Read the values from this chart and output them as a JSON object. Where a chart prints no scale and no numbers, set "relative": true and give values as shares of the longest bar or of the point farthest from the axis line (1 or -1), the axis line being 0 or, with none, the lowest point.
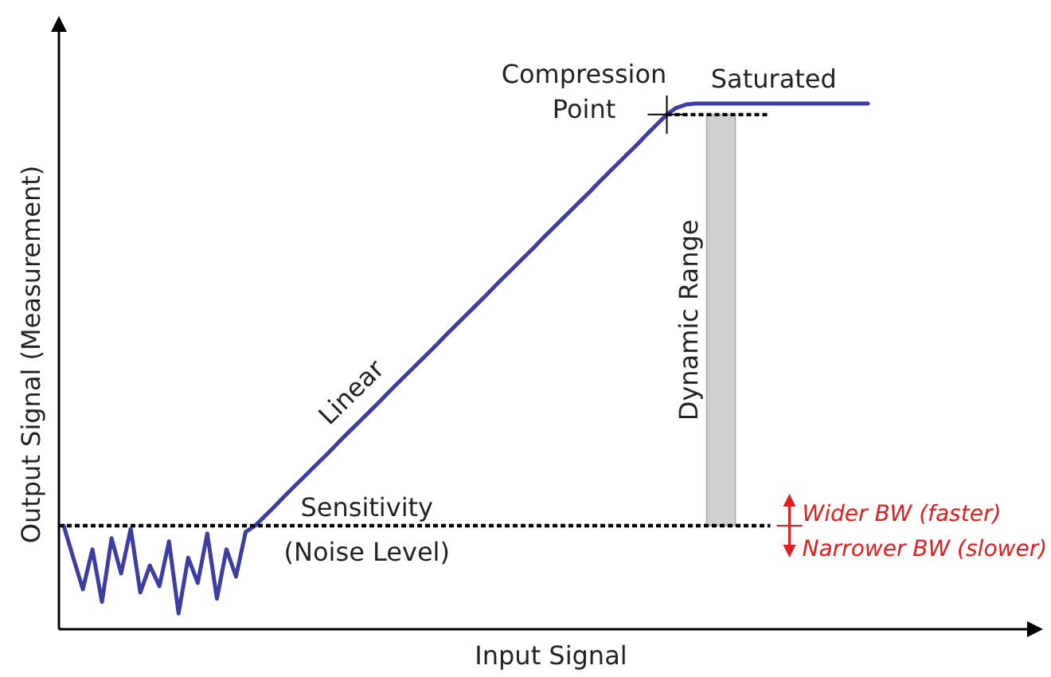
{
  "chart_data": {
    "type": "line",
    "relative": true,
    "xlabel": "Input Signal",
    "ylabel": "Output Signal (Measurement)",
    "line_style": "solid",
    "categories": [
      null,
      null,
      null,
      null,
      null,
      null,
      null,
      null,
      null,
      null,
      null,
      null,
      null,
      null,
      null,
      null,
      null,
      null,
      null,
      null,
      null,
      null,
      null,
      null,
      null,
      null,
      null,
      null,
      null,
      null,
      null,
      null,
      null,
      null,
      null,
      null,
      null,
      null,
      null,
      null,
      null,
      null,
      null,
      null,
      null,
      null,
      null,
      null,
      null,
      null,
      null,
      null,
      null,
      null,
      null,
      null,
      null,
      null,
      null,
      null,
      null,
      null,
      null,
      null,
      null,
      null,
      null,
      null,
      null,
      null,
      null,
      null,
      null,
      null,
      null,
      null,
      null,
      null,
      null,
      null,
      null,
      null,
      null,
      null,
      null
    ],
    "series": [
      {
        "color": "#3c3fa0",
        "values": [
          0.197,
          0.136,
          0.076,
          0.152,
          0.052,
          0.173,
          0.106,
          0.191,
          0.07,
          0.121,
          0.082,
          0.167,
          0.03,
          0.136,
          0.088,
          0.182,
          0.058,
          0.152,
          0.1,
          0.185,
          0.197,
          0.215,
          0.233,
          0.252,
          0.27,
          0.288,
          0.306,
          0.324,
          0.342,
          0.361,
          0.379,
          0.397,
          0.415,
          0.433,
          0.452,
          0.47,
          0.488,
          0.506,
          0.524,
          0.542,
          0.561,
          0.579,
          0.597,
          0.615,
          0.633,
          0.652,
          0.67,
          0.688,
          0.706,
          0.724,
          0.743,
          0.761,
          0.779,
          0.797,
          0.815,
          0.833,
          0.852,
          0.87,
          0.888,
          0.906,
          0.924,
          0.943,
          0.961,
          0.979,
          0.992,
          0.998,
          1,
          1,
          1,
          1,
          1,
          1,
          1,
          1,
          1,
          1,
          1,
          1,
          1,
          1,
          1,
          1,
          1,
          1,
          1
        ]
      }
    ],
    "ref_lines": [
      {
        "axis": "y",
        "value": 0.197,
        "label": "Sensitivity",
        "line_style": "dotted"
      },
      {
        "axis": "y",
        "value": 0.979,
        "label": "Compression Point",
        "line_style": "dotted"
      }
    ],
    "annotations": [
      "Linear",
      "Saturated",
      "(Noise Level)",
      "Wider BW (faster)",
      "Narrower BW (slower)",
      "Dynamic Range"
    ]
  }
}
